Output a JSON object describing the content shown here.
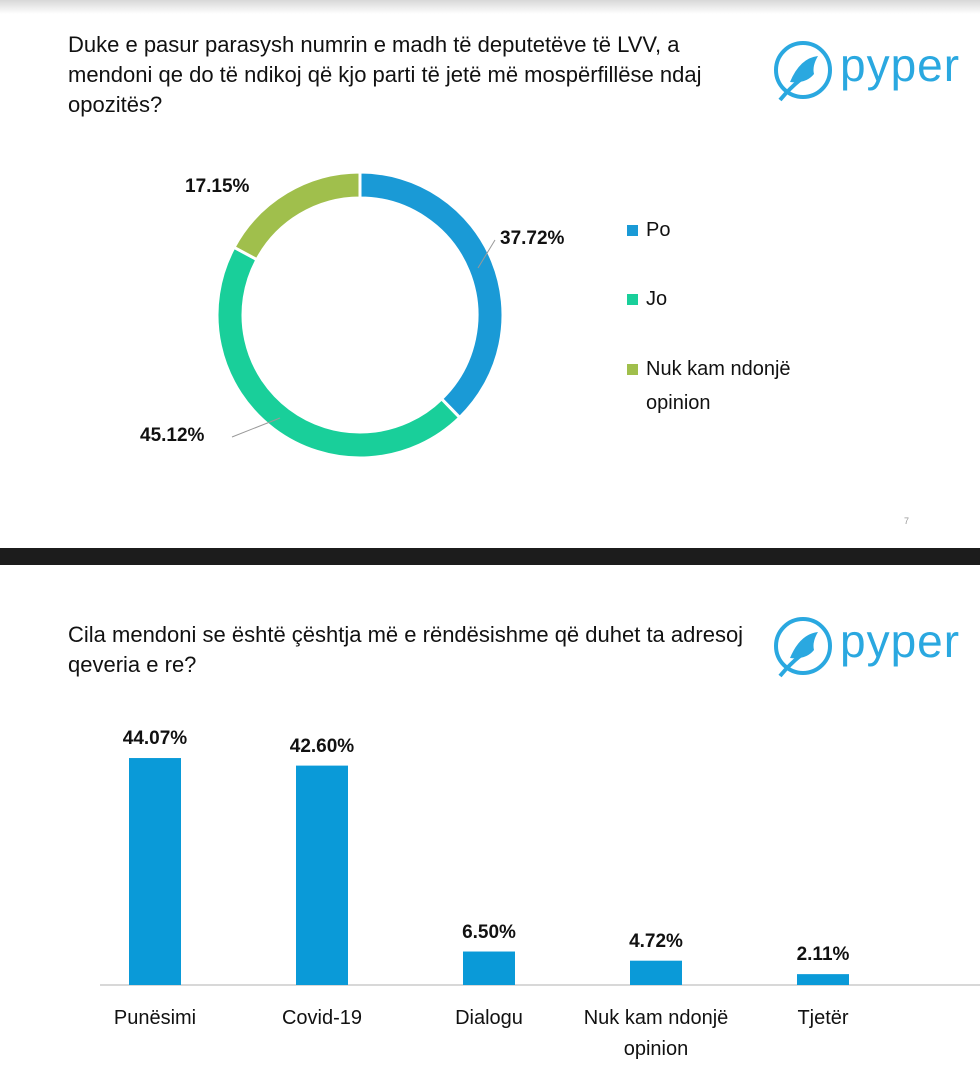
{
  "logo": [
    "pyper",
    "pyper"
  ],
  "page_number": "7",
  "chart_data": [
    {
      "type": "donut",
      "title": "Duke e pasur parasysh numrin e madh të deputetëve të LVV, a mendoni qe do të ndikoj që kjo parti të jetë më mospërfillëse ndaj opozitës?",
      "categories": [
        "Po",
        "Jo",
        "Nuk kam ndonjë opinion"
      ],
      "values": [
        37.72,
        45.12,
        17.15
      ],
      "value_labels": [
        "37.72%",
        "45.12%",
        "17.15%"
      ],
      "colors": [
        "#1a9ad6",
        "#19cf9a",
        "#a0bf4c"
      ],
      "legend": "right"
    },
    {
      "type": "bar",
      "title": "Cila mendoni se është çështja më e rëndësishme që duhet ta adresoj qeveria e re?",
      "categories": [
        "Punësimi",
        "Covid-19",
        "Dialogu",
        "Nuk kam ndonjë opinion",
        "Tjetër"
      ],
      "values": [
        44.07,
        42.6,
        6.5,
        4.72,
        2.11
      ],
      "value_labels": [
        "44.07%",
        "42.60%",
        "6.50%",
        "4.72%",
        "2.11%"
      ],
      "color": "#0a9ad8"
    }
  ]
}
